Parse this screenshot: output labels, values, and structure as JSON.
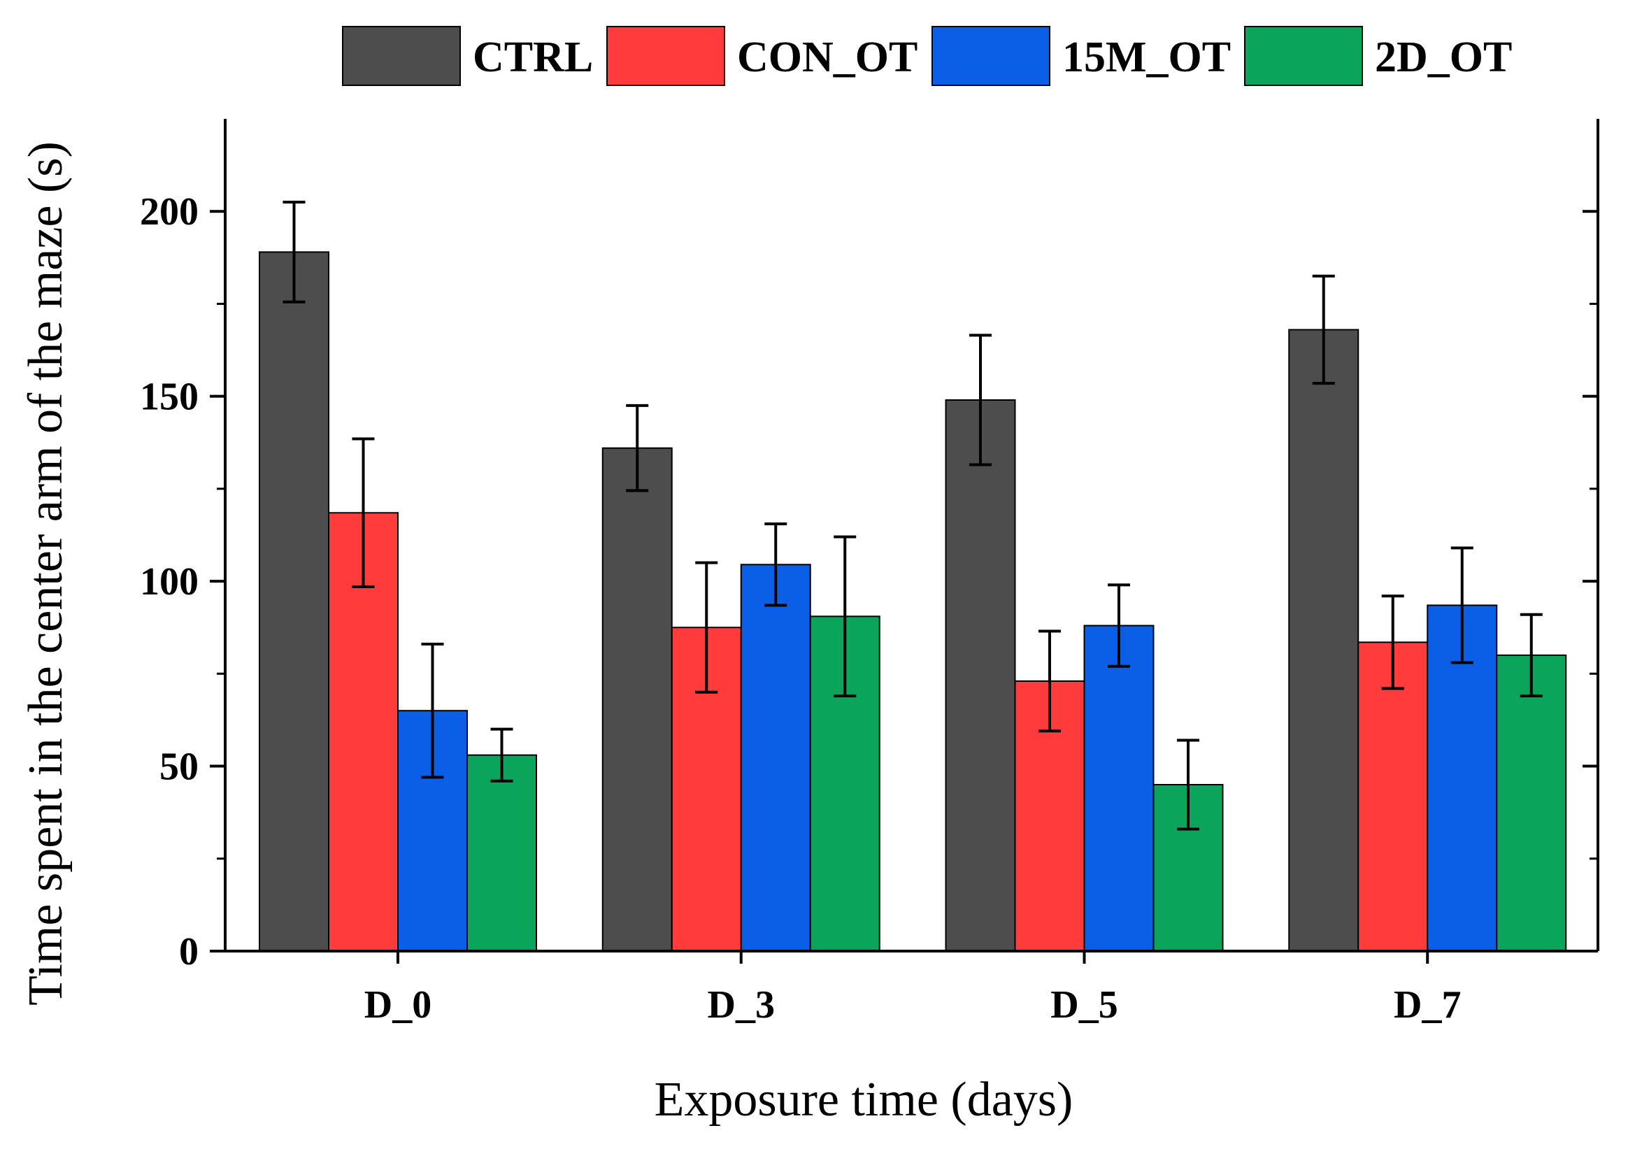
{
  "chart_data": {
    "type": "bar",
    "title": "",
    "xlabel": "Exposure time (days)",
    "ylabel": "Time spent in the center arm of the maze (s)",
    "categories": [
      "D_0",
      "D_3",
      "D_5",
      "D_7"
    ],
    "ylim": [
      0,
      225
    ],
    "yticks": [
      0,
      50,
      100,
      150,
      200
    ],
    "yticks_labels": [
      "0",
      "50",
      "100",
      "150",
      "200"
    ],
    "legend_position": "top",
    "series": [
      {
        "name": "CTRL",
        "color": "#4d4d4d",
        "values": [
          189,
          136,
          149,
          168
        ],
        "errors": [
          13.5,
          11.5,
          17.5,
          14.5
        ]
      },
      {
        "name": "CON_OT",
        "color": "#ff3b3b",
        "values": [
          118.5,
          87.5,
          73,
          83.5
        ],
        "errors": [
          20,
          17.5,
          13.5,
          12.5
        ]
      },
      {
        "name": "15M_OT",
        "color": "#0a5fe6",
        "values": [
          65,
          104.5,
          88,
          93.5
        ],
        "errors": [
          18,
          11,
          11,
          15.5
        ]
      },
      {
        "name": "2D_OT",
        "color": "#0aa55a",
        "values": [
          53,
          90.5,
          45,
          80
        ],
        "errors": [
          7,
          21.5,
          12,
          11
        ]
      }
    ]
  }
}
